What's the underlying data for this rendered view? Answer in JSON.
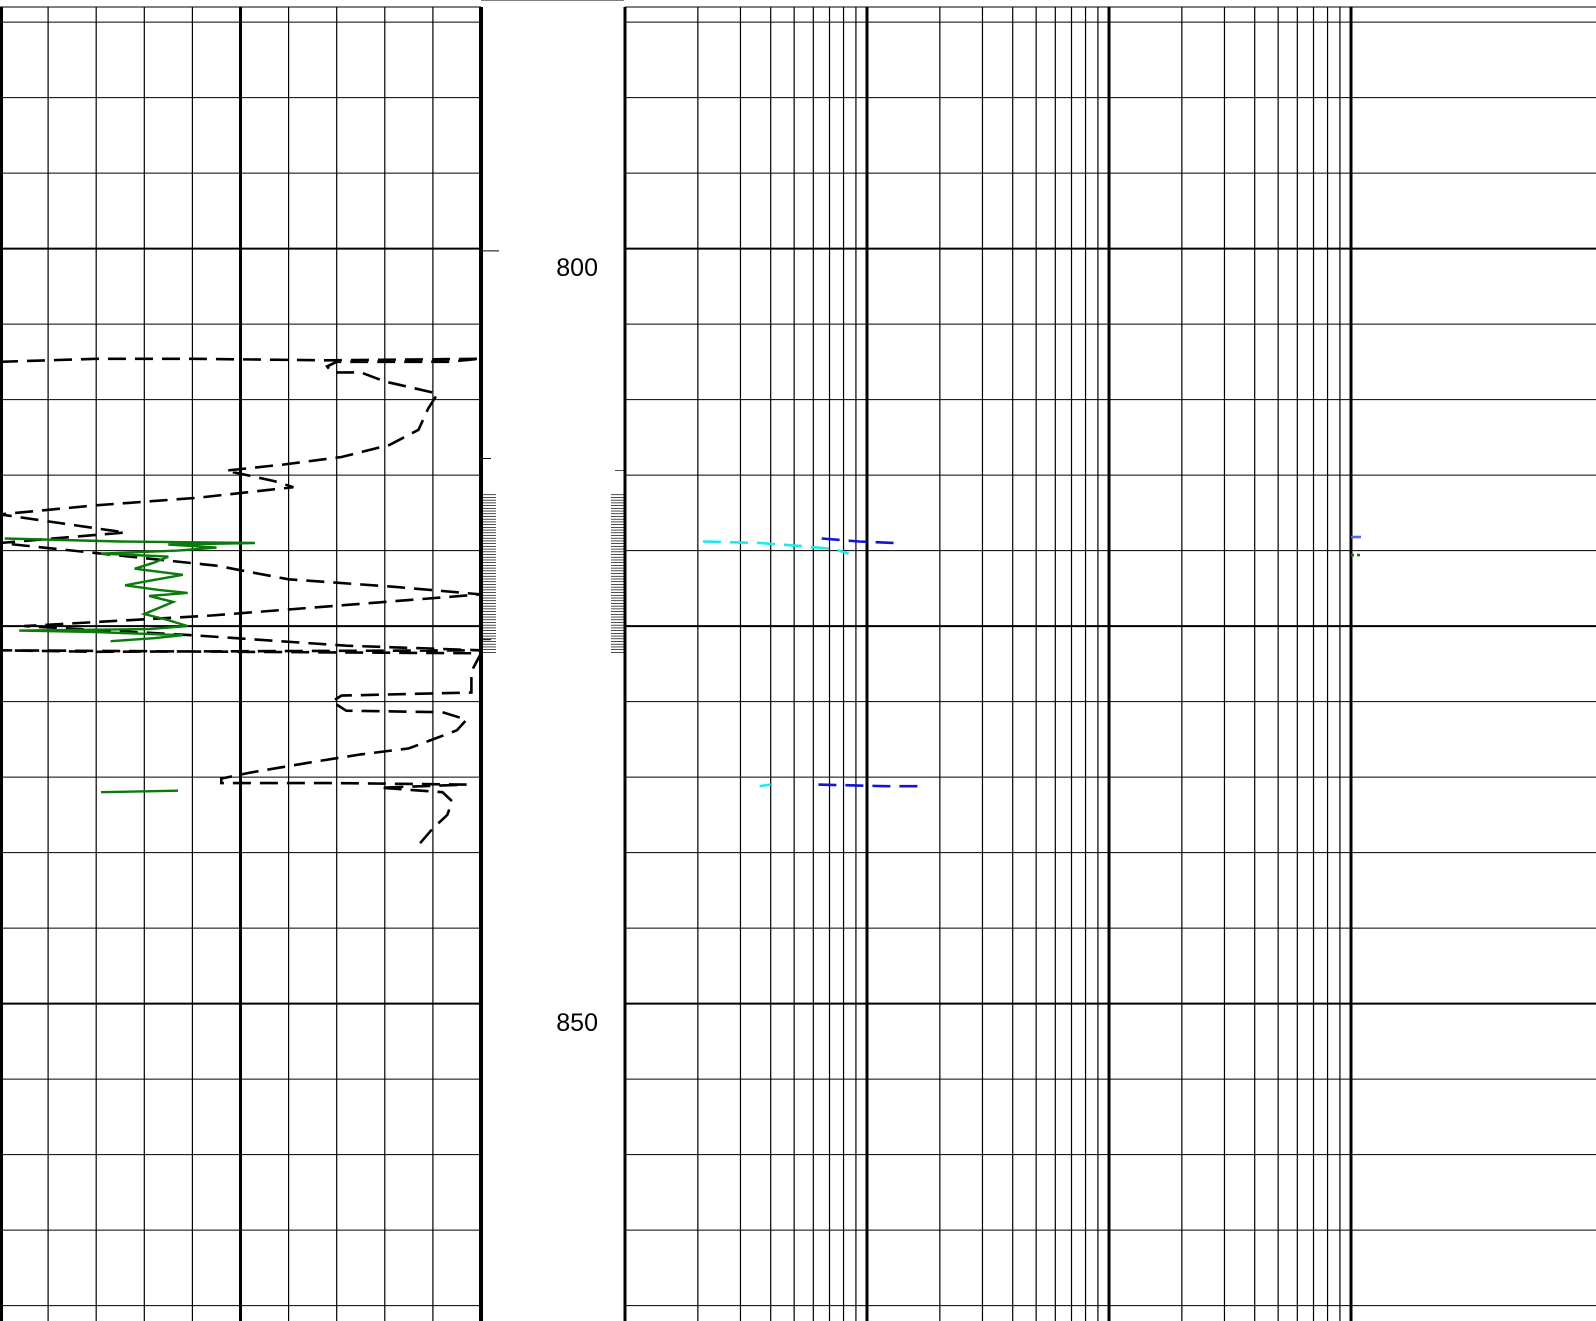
{
  "chart_data": {
    "type": "line",
    "title": "",
    "depth_axis": {
      "ticks": [
        800,
        850
      ],
      "tick_labels": [
        "800",
        "850"
      ],
      "range": [
        784,
        871.4
      ],
      "major_step": 25,
      "minor_step": 5
    },
    "tracks": [
      {
        "name": "track-1",
        "scale": "linear",
        "divisions": 10,
        "x_range": [
          0,
          10
        ]
      },
      {
        "name": "depth-track",
        "scale": "depth"
      },
      {
        "name": "track-2",
        "scale": "log",
        "decades": 3,
        "x_range": [
          1,
          1000
        ]
      }
    ],
    "series": [
      {
        "track": "track-1",
        "style": "dashed",
        "color": "#000000",
        "points": [
          [
            0,
            807.5
          ],
          [
            2,
            807.3
          ],
          [
            4,
            807.3
          ],
          [
            6.8,
            807.4
          ],
          [
            10,
            807.3
          ],
          [
            9.3,
            807.5
          ],
          [
            7,
            807.5
          ],
          [
            6.8,
            807.8
          ],
          [
            6.9,
            808.2
          ],
          [
            7.5,
            808.2
          ],
          [
            8,
            808.8
          ],
          [
            9.1,
            809.6
          ],
          [
            8.9,
            810.6
          ],
          [
            8.7,
            812
          ],
          [
            8.1,
            813
          ],
          [
            7.1,
            813.8
          ],
          [
            5.9,
            814.3
          ],
          [
            4.7,
            814.7
          ],
          [
            5.7,
            815.4
          ],
          [
            6.1,
            815.8
          ],
          [
            4.1,
            816.5
          ],
          [
            2,
            817
          ],
          [
            0,
            817.6
          ],
          [
            2.6,
            818.8
          ],
          [
            0,
            819.5
          ],
          [
            4.5,
            821
          ],
          [
            6,
            821.9
          ],
          [
            8.2,
            822.4
          ],
          [
            10,
            822.9
          ],
          [
            4.4,
            824.3
          ],
          [
            0.5,
            825
          ],
          [
            4,
            825.6
          ],
          [
            7.2,
            826.3
          ],
          [
            10,
            826.6
          ],
          [
            2,
            826.7
          ],
          [
            0,
            826.6
          ],
          [
            10,
            826.8
          ],
          [
            9.8,
            828
          ],
          [
            9.8,
            829.4
          ],
          [
            7.1,
            829.6
          ],
          [
            6.9,
            830
          ],
          [
            7.2,
            830.6
          ],
          [
            9.2,
            830.7
          ],
          [
            9.7,
            831.2
          ],
          [
            9.5,
            831.9
          ],
          [
            9,
            832.5
          ],
          [
            8.5,
            833.1
          ],
          [
            7.5,
            833.5
          ],
          [
            6.5,
            834
          ],
          [
            5.2,
            834.7
          ],
          [
            4.6,
            835.1
          ],
          [
            4.6,
            835.4
          ],
          [
            7,
            835.4
          ],
          [
            9.7,
            835.5
          ],
          [
            7.9,
            835.7
          ],
          [
            9.2,
            836
          ],
          [
            9.4,
            836.6
          ],
          [
            9.3,
            837.5
          ],
          [
            9,
            838.4
          ],
          [
            8.7,
            839.5
          ]
        ]
      },
      {
        "track": "track-1",
        "style": "solid",
        "color": "#0a7a0a",
        "points": [
          [
            0.1,
            819.2
          ],
          [
            2.5,
            819.4
          ],
          [
            5.3,
            819.5
          ],
          [
            3.5,
            819.6
          ],
          [
            4.5,
            819.8
          ],
          [
            3.7,
            820
          ],
          [
            2.1,
            820.2
          ],
          [
            3.5,
            820.4
          ],
          [
            3.2,
            820.8
          ],
          [
            2.8,
            821.2
          ],
          [
            3.8,
            821.6
          ],
          [
            3.1,
            822
          ],
          [
            2.6,
            822.3
          ],
          [
            3.3,
            822.6
          ],
          [
            3.9,
            822.8
          ],
          [
            3.1,
            823
          ],
          [
            3.6,
            823.4
          ],
          [
            3.3,
            823.8
          ],
          [
            3,
            824.2
          ],
          [
            3.5,
            824.6
          ],
          [
            3.9,
            825
          ],
          [
            3.1,
            825.2
          ],
          [
            0.4,
            825.3
          ],
          [
            2,
            825.4
          ],
          [
            3.8,
            825.6
          ],
          [
            3.2,
            825.8
          ],
          [
            2.3,
            826
          ]
        ]
      },
      {
        "track": "track-1",
        "style": "solid",
        "color": "#0a7a0a",
        "points": [
          [
            2.1,
            836
          ],
          [
            3.7,
            835.9
          ]
        ]
      },
      {
        "track": "track-2",
        "style": "dashed",
        "color": "#1eeaea",
        "points": [
          [
            2.1,
            819.4
          ],
          [
            3.6,
            819.5
          ],
          [
            5.4,
            819.7
          ],
          [
            7.3,
            819.9
          ],
          [
            8.4,
            820.2
          ]
        ]
      },
      {
        "track": "track-2",
        "style": "dashed",
        "color": "#1eeaea",
        "points": [
          [
            3.6,
            835.6
          ],
          [
            4.0,
            835.5
          ]
        ]
      },
      {
        "track": "track-2",
        "style": "dashed",
        "color": "#1414d2",
        "points": [
          [
            6.5,
            819.2
          ],
          [
            9.3,
            819.4
          ],
          [
            13.0,
            819.5
          ]
        ]
      },
      {
        "track": "track-2",
        "style": "dashed",
        "color": "#1414d2",
        "points": [
          [
            6.3,
            835.5
          ],
          [
            12.0,
            835.6
          ],
          [
            16.5,
            835.6
          ]
        ]
      },
      {
        "track": "track-2",
        "style": "dashed",
        "color": "#4a6aff",
        "points": [
          [
            1000,
            819.1
          ],
          [
            1100,
            819.1
          ]
        ]
      },
      {
        "track": "track-2",
        "style": "dotted",
        "color": "#0a7a0a",
        "points": [
          [
            1000,
            820.3
          ],
          [
            1100,
            820.3
          ]
        ]
      }
    ]
  }
}
